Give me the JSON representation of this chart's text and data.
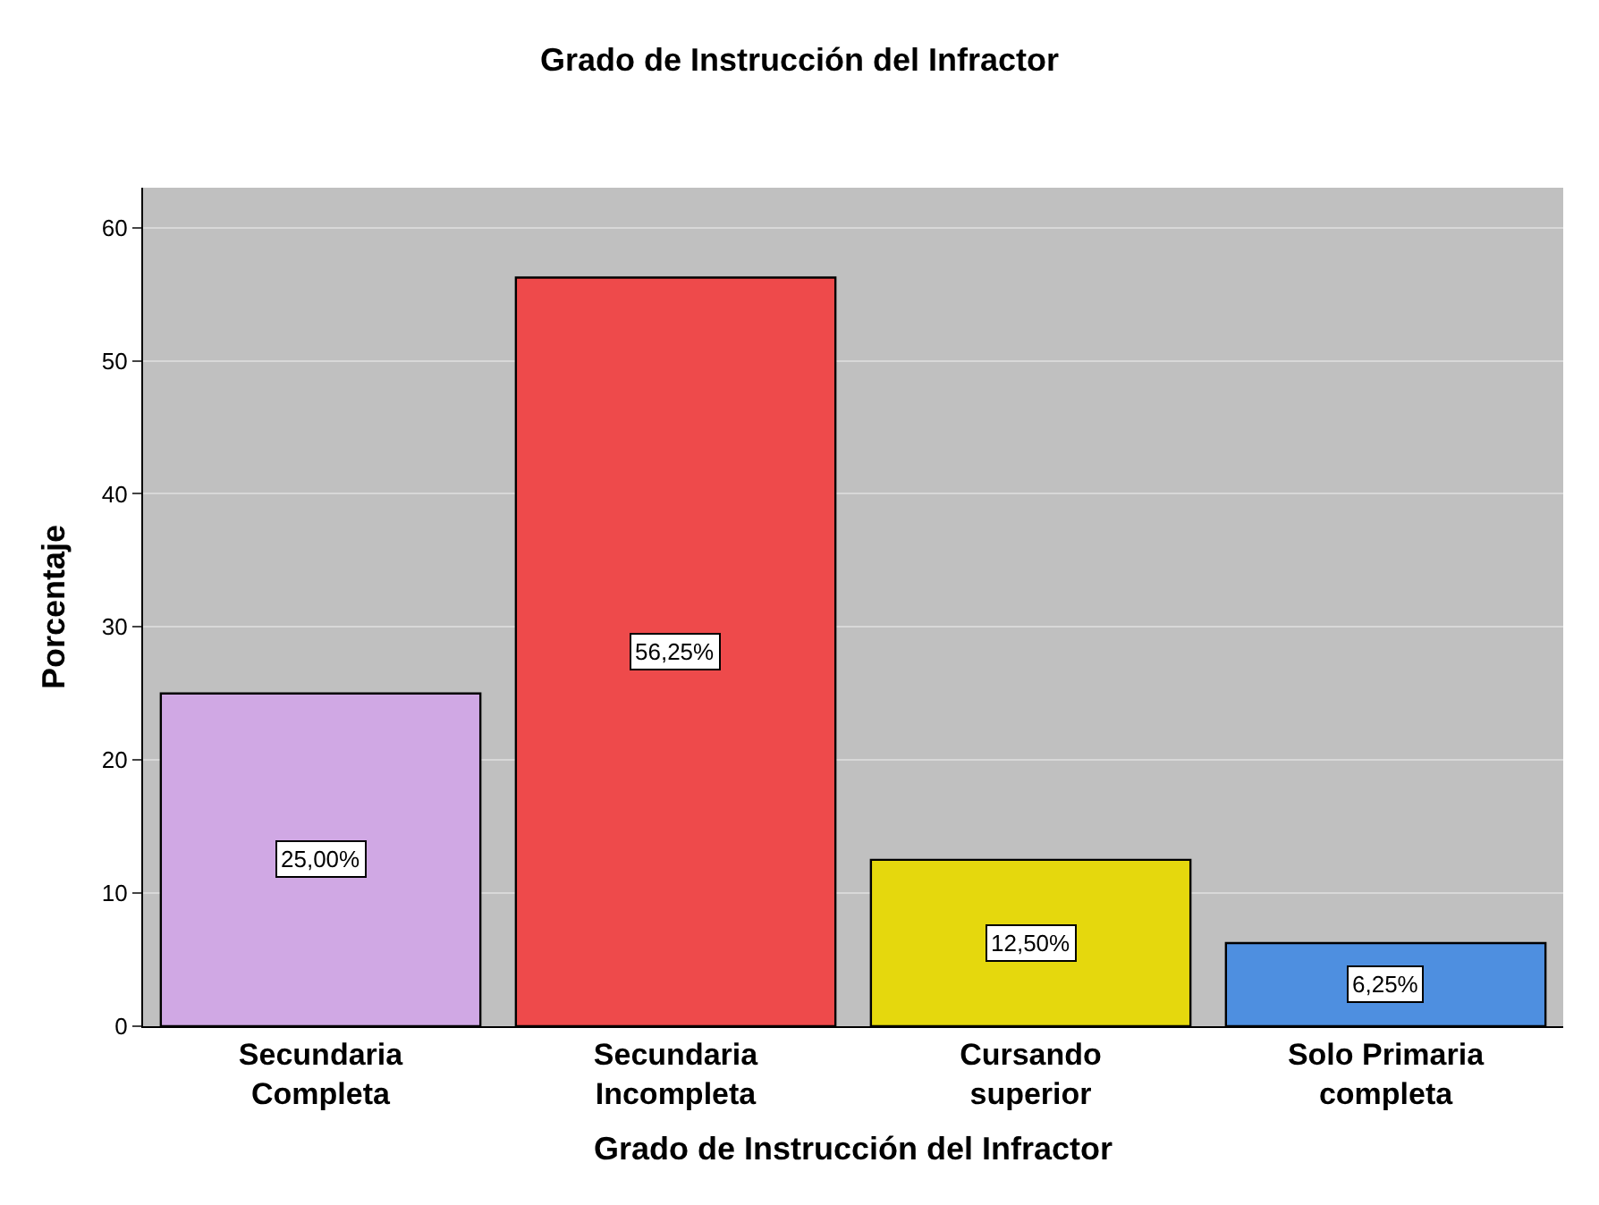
{
  "chart_data": {
    "type": "bar",
    "title": "Grado de Instrucción del Infractor",
    "xlabel": "Grado de Instrucción del Infractor",
    "ylabel": "Porcentaje",
    "categories": [
      "Secundaria\nCompleta",
      "Secundaria\nIncompleta",
      "Cursando\nsuperior",
      "Solo Primaria\ncompleta"
    ],
    "values": [
      25,
      56.25,
      12.5,
      6.25
    ],
    "colors": [
      "#d0a8e4",
      "#ee4a4b",
      "#e5d80d",
      "#4e8fe0"
    ],
    "value_labels": [
      "25,00%",
      "56,25%",
      "12,50%",
      "6,25%"
    ],
    "ylim": [
      0,
      63
    ],
    "yticks": [
      0,
      10,
      20,
      30,
      40,
      50,
      60
    ],
    "grid": "y"
  }
}
